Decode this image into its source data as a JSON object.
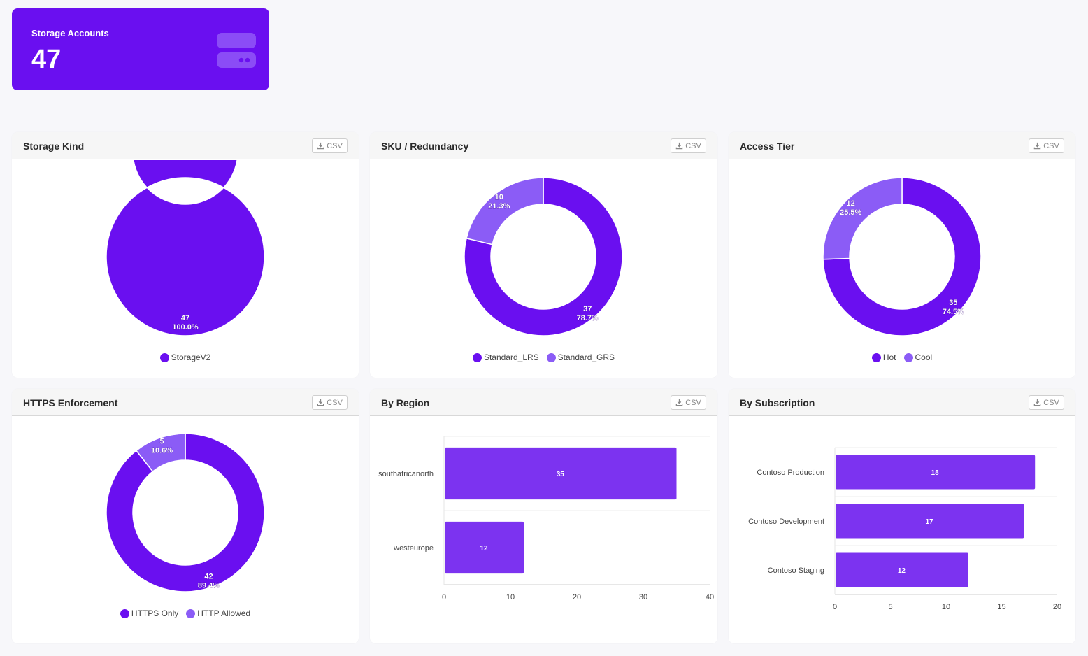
{
  "kpi": {
    "label": "Storage Accounts",
    "value": "47",
    "icon": "storage-server-icon"
  },
  "csv_label": "CSV",
  "colors": {
    "primary": "#6a0ff0",
    "secondary": "#8b5cf6",
    "bar": "#7c33f0",
    "kpi_bg": "#6a0ff0"
  },
  "cards": {
    "storage_kind": {
      "title": "Storage Kind"
    },
    "sku": {
      "title": "SKU / Redundancy"
    },
    "access_tier": {
      "title": "Access Tier"
    },
    "https": {
      "title": "HTTPS Enforcement"
    },
    "region": {
      "title": "By Region"
    },
    "subscription": {
      "title": "By Subscription"
    }
  },
  "chart_data": [
    {
      "id": "storage_kind",
      "type": "pie",
      "donut": true,
      "title": "Storage Kind",
      "labels": [
        "StorageV2"
      ],
      "values": [
        47
      ],
      "percent_labels": [
        "100.0%"
      ],
      "colors": [
        "#6a0ff0"
      ],
      "legend": "bottom"
    },
    {
      "id": "sku",
      "type": "pie",
      "donut": true,
      "title": "SKU / Redundancy",
      "labels": [
        "Standard_LRS",
        "Standard_GRS"
      ],
      "values": [
        37,
        10
      ],
      "percent_labels": [
        "78.7%",
        "21.3%"
      ],
      "colors": [
        "#6a0ff0",
        "#8b5cf6"
      ],
      "legend": "bottom"
    },
    {
      "id": "access_tier",
      "type": "pie",
      "donut": true,
      "title": "Access Tier",
      "labels": [
        "Hot",
        "Cool"
      ],
      "values": [
        35,
        12
      ],
      "percent_labels": [
        "74.5%",
        "25.5%"
      ],
      "colors": [
        "#6a0ff0",
        "#8b5cf6"
      ],
      "legend": "bottom"
    },
    {
      "id": "https",
      "type": "pie",
      "donut": true,
      "title": "HTTPS Enforcement",
      "labels": [
        "HTTPS Only",
        "HTTP Allowed"
      ],
      "values": [
        42,
        5
      ],
      "percent_labels": [
        "89.4%",
        "10.6%"
      ],
      "colors": [
        "#6a0ff0",
        "#8b5cf6"
      ],
      "legend": "bottom"
    },
    {
      "id": "region",
      "type": "bar",
      "orientation": "horizontal",
      "title": "By Region",
      "categories": [
        "southafricanorth",
        "westeurope"
      ],
      "values": [
        35,
        12
      ],
      "xlim": [
        0,
        40
      ],
      "xticks": [
        0,
        10,
        20,
        30,
        40
      ],
      "grid": true
    },
    {
      "id": "subscription",
      "type": "bar",
      "orientation": "horizontal",
      "title": "By Subscription",
      "categories": [
        "Contoso Production",
        "Contoso Development",
        "Contoso Staging"
      ],
      "values": [
        18,
        17,
        12
      ],
      "xlim": [
        0,
        20
      ],
      "xticks": [
        0,
        5,
        10,
        15,
        20
      ],
      "grid": true
    }
  ]
}
